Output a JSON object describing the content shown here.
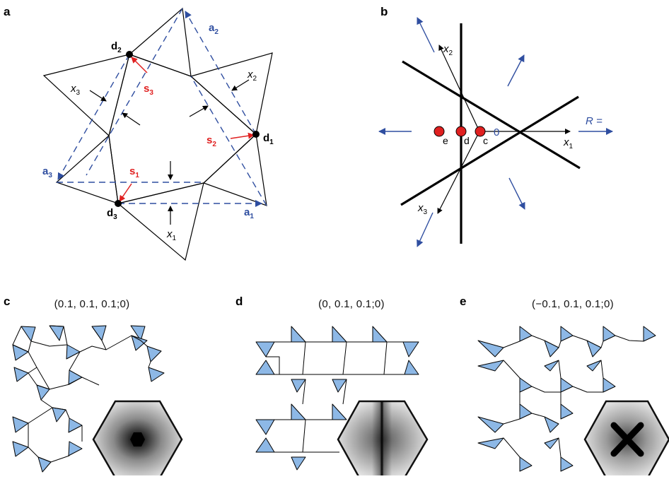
{
  "panels": {
    "a": {
      "letter": "a",
      "labels": {
        "d1": "d",
        "d1_sub": "1",
        "d2": "d",
        "d2_sub": "2",
        "d3": "d",
        "d3_sub": "3",
        "a1": "a",
        "a1_sub": "1",
        "a2": "a",
        "a2_sub": "2",
        "a3": "a",
        "a3_sub": "3",
        "s1": "s",
        "s1_sub": "1",
        "s2": "s",
        "s2_sub": "2",
        "s3": "s",
        "s3_sub": "3",
        "x1": "x",
        "x1_sub": "1",
        "x2": "x",
        "x2_sub": "2",
        "x3": "x",
        "x3_sub": "3"
      }
    },
    "b": {
      "letter": "b",
      "labels": {
        "x1": "x",
        "x1_sub": "1",
        "x2": "x",
        "x2_sub": "2",
        "x3": "x",
        "x3_sub": "3",
        "origin": "0",
        "r_eq": "R =",
        "pt_c": "c",
        "pt_d": "d",
        "pt_e": "e"
      }
    },
    "c": {
      "letter": "c",
      "params": "(0.1, 0.1, 0.1;0)"
    },
    "d": {
      "letter": "d",
      "params": "(0, 0.1, 0.1;0)"
    },
    "e": {
      "letter": "e",
      "params": "(−0.1, 0.1, 0.1;0)"
    }
  },
  "colors": {
    "lattice_blue": "#2f4ea0",
    "s_red": "#e02020",
    "triangle_fill": "#8db8e6",
    "point_fill": "#e02020"
  }
}
